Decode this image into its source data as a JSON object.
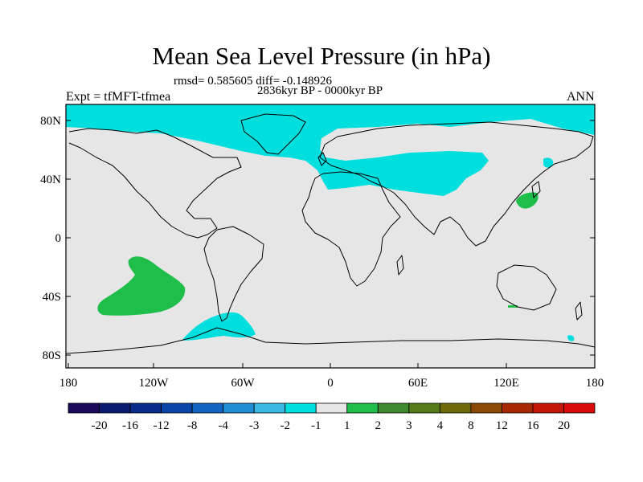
{
  "header": {
    "title": "Mean Sea Level Pressure (in hPa)",
    "stats": "rmsd= 0.585605 diff= -0.148926",
    "period": "2836kyr BP - 0000kyr BP",
    "experiment": "Expt = tfMFT-tfmea",
    "season": "ANN"
  },
  "map": {
    "lat_ticks": [
      "80N",
      "40N",
      "0",
      "40S",
      "80S"
    ],
    "lon_ticks": [
      "180",
      "120W",
      "60W",
      "0",
      "60E",
      "120E",
      "180"
    ],
    "background_color": "#e6e6e6",
    "coast_color": "#000000"
  },
  "legend": {
    "colors": [
      "#1a0a5a",
      "#0a1a6e",
      "#0a2a8c",
      "#0a46a8",
      "#1264c2",
      "#1e8ed6",
      "#3cb9e2",
      "#00dede",
      "#e6e6e6",
      "#1fbe4a",
      "#3f8a2c",
      "#557a1a",
      "#6e6a0a",
      "#8a4a06",
      "#a82a04",
      "#c41606",
      "#d80a0a"
    ],
    "labels": [
      "-20",
      "-16",
      "-12",
      "-8",
      "-4",
      "-3",
      "-2",
      "-1",
      "1",
      "2",
      "3",
      "4",
      "8",
      "12",
      "16",
      "20"
    ]
  },
  "regions": {
    "negative_color": "#00dede",
    "positive_color": "#1fbe4a"
  }
}
